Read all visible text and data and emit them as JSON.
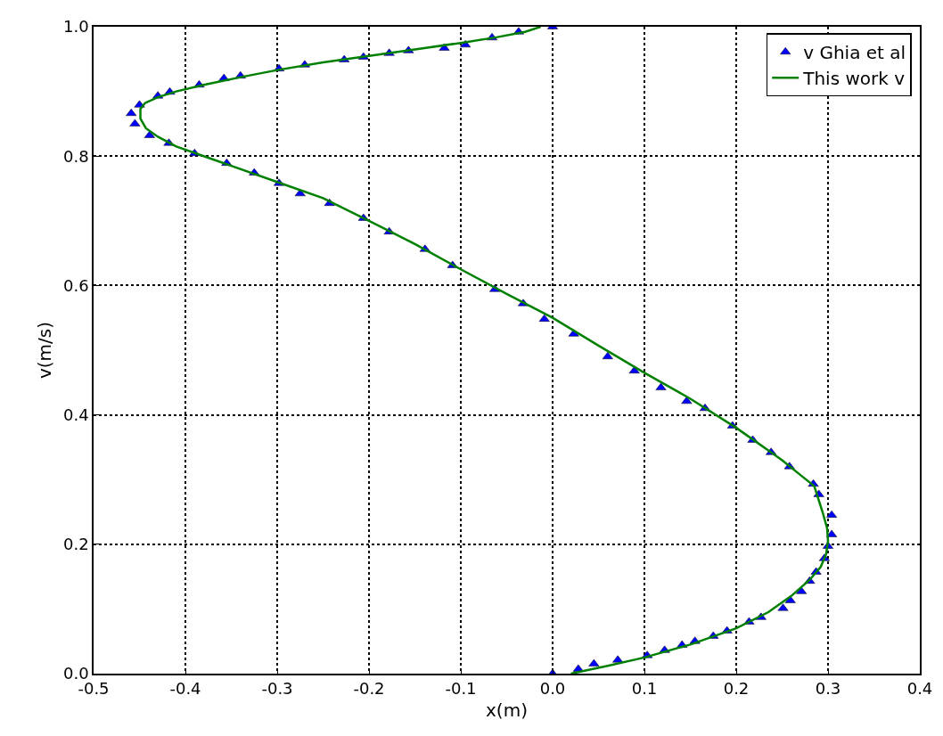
{
  "chart_data": {
    "type": "scatter",
    "xlabel": "x(m)",
    "ylabel": "v(m/s)",
    "xlim": [
      -0.5,
      0.4
    ],
    "xticks": [
      -0.5,
      -0.4,
      -0.3,
      -0.2,
      -0.1,
      {
        "value": 0,
        "label": "0.0"
      },
      0.1,
      0.2,
      0.3,
      0.4
    ],
    "ylim": [
      0,
      1
    ],
    "yticks": [
      {
        "value": 0,
        "label": "0.0"
      },
      0.2,
      0.4,
      0.6,
      0.8,
      {
        "value": 1,
        "label": "1.0"
      }
    ],
    "grid": true,
    "legend": "top right",
    "series": [
      {
        "name": "v Ghia et al",
        "marker": "triangle",
        "color": "#0000ff",
        "x": [
          0.0,
          -0.037,
          -0.066,
          -0.095,
          -0.118,
          -0.157,
          -0.178,
          -0.206,
          -0.227,
          -0.27,
          -0.298,
          -0.34,
          -0.358,
          -0.385,
          -0.417,
          -0.43,
          -0.45,
          -0.459,
          -0.455,
          -0.439,
          -0.418,
          -0.39,
          -0.355,
          -0.325,
          -0.298,
          -0.275,
          -0.243,
          -0.206,
          -0.178,
          -0.139,
          -0.109,
          -0.063,
          -0.032,
          -0.009,
          0.023,
          0.06,
          0.089,
          0.118,
          0.146,
          0.166,
          0.196,
          0.218,
          0.238,
          0.258,
          0.284,
          0.29,
          0.304,
          0.304,
          0.3,
          0.296,
          0.287,
          0.28,
          0.271,
          0.259,
          0.251,
          0.227,
          0.214,
          0.19,
          0.175,
          0.155,
          0.141,
          0.122,
          0.103,
          0.071,
          0.045,
          0.028,
          0.0
        ],
        "values": [
          1.0,
          0.992,
          0.983,
          0.972,
          0.967,
          0.963,
          0.959,
          0.953,
          0.949,
          0.941,
          0.935,
          0.924,
          0.92,
          0.91,
          0.899,
          0.893,
          0.879,
          0.866,
          0.85,
          0.832,
          0.82,
          0.804,
          0.789,
          0.774,
          0.758,
          0.742,
          0.727,
          0.704,
          0.683,
          0.656,
          0.631,
          0.594,
          0.572,
          0.548,
          0.525,
          0.49,
          0.468,
          0.442,
          0.421,
          0.41,
          0.383,
          0.361,
          0.342,
          0.32,
          0.293,
          0.277,
          0.245,
          0.215,
          0.197,
          0.178,
          0.157,
          0.143,
          0.127,
          0.113,
          0.101,
          0.087,
          0.08,
          0.066,
          0.058,
          0.05,
          0.044,
          0.036,
          0.028,
          0.021,
          0.015,
          0.007,
          0.0
        ]
      },
      {
        "name": "This work v",
        "type": "line",
        "line_style": "solid",
        "color": "#008000",
        "x": [
          0.02,
          0.06,
          0.1,
          0.15,
          0.2,
          0.235,
          0.26,
          0.28,
          0.292,
          0.298,
          0.3,
          0.299,
          0.294,
          0.285,
          0.27,
          0.25,
          0.2,
          0.15,
          0.1,
          0.05,
          0.0,
          -0.05,
          -0.1,
          -0.15,
          -0.2,
          -0.25,
          -0.3,
          -0.35,
          -0.38,
          -0.41,
          -0.43,
          -0.443,
          -0.449,
          -0.449,
          -0.444,
          -0.43,
          -0.41,
          -0.38,
          -0.34,
          -0.3,
          -0.25,
          -0.2,
          -0.15,
          -0.1,
          -0.06,
          -0.03,
          -0.013
        ],
        "values": [
          0.0,
          0.012,
          0.025,
          0.045,
          0.07,
          0.095,
          0.12,
          0.145,
          0.165,
          0.185,
          0.205,
          0.225,
          0.25,
          0.29,
          0.307,
          0.33,
          0.38,
          0.425,
          0.465,
          0.507,
          0.55,
          0.587,
          0.625,
          0.664,
          0.7,
          0.735,
          0.76,
          0.785,
          0.8,
          0.815,
          0.83,
          0.843,
          0.858,
          0.873,
          0.882,
          0.891,
          0.9,
          0.91,
          0.922,
          0.933,
          0.945,
          0.955,
          0.965,
          0.975,
          0.984,
          0.992,
          1.0
        ]
      }
    ]
  }
}
